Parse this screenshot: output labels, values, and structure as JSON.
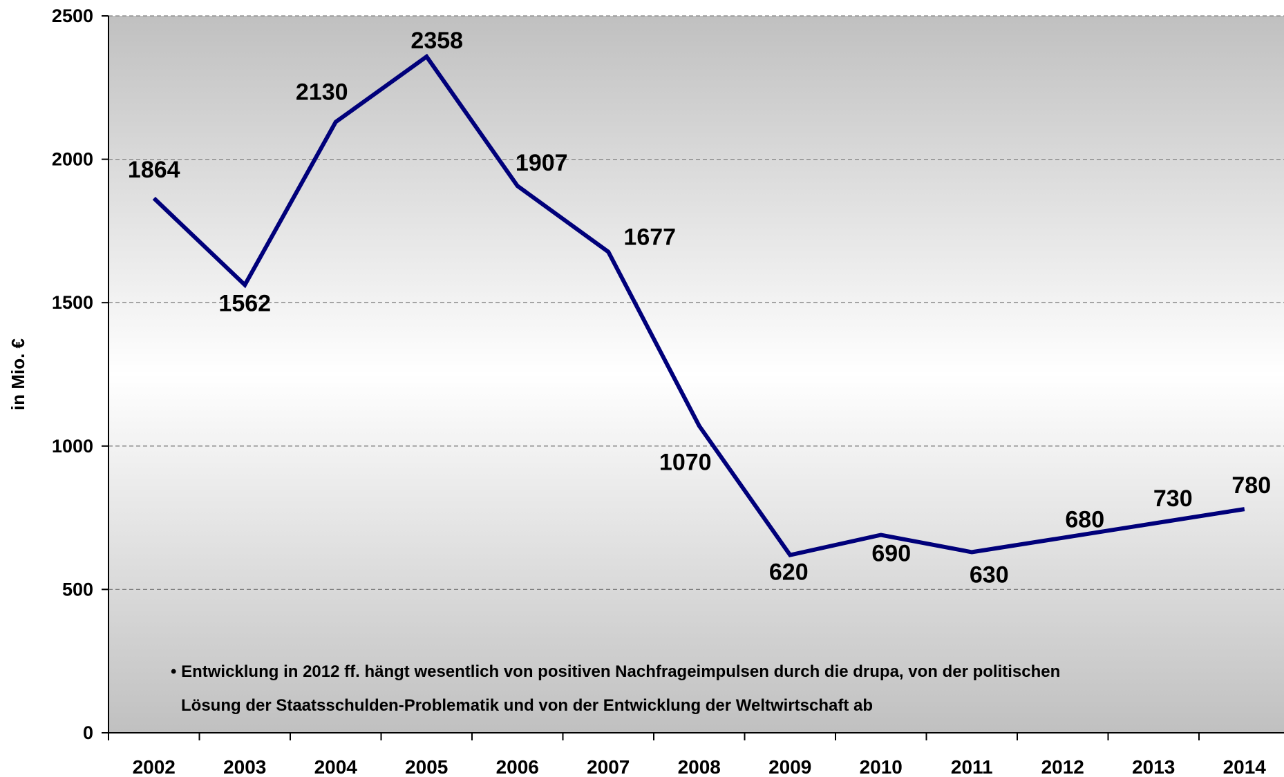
{
  "chart_data": {
    "type": "line",
    "title": "",
    "xlabel": "",
    "ylabel": "in Mio. €",
    "ylim": [
      0,
      2500
    ],
    "yticks": [
      0,
      500,
      1000,
      1500,
      2000,
      2500
    ],
    "grid": "horizontal dashed",
    "categories": [
      "2002",
      "2003",
      "2004",
      "2005",
      "2006",
      "2007",
      "2008",
      "2009",
      "2010",
      "2011",
      "2012",
      "2013",
      "2014"
    ],
    "series": [
      {
        "values": [
          1864,
          1562,
          2130,
          2358,
          1907,
          1677,
          1070,
          620,
          690,
          630,
          680,
          730,
          780
        ],
        "color": "#00007a"
      }
    ],
    "data_labels": [
      "1864",
      "1562",
      "2130",
      "2358",
      "1907",
      "1677",
      "1070",
      "620",
      "690",
      "630",
      "680",
      "730",
      "780"
    ],
    "annotations": [
      "• Entwicklung in 2012 ff. hängt wesentlich von positiven Nachfrageimpulsen durch die drupa, von der politischen",
      "Lösung der Staatsschulden-Problematik und von der Entwicklung der Weltwirtschaft ab"
    ],
    "colors": {
      "line": "#00007a",
      "plot_bg_edge": "#c0c0c0",
      "plot_bg_center": "#ffffff"
    }
  }
}
